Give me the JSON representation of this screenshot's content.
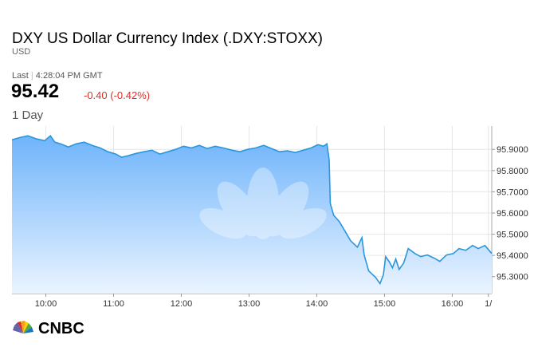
{
  "header": {
    "last_label": "Last",
    "last_time": "4:28:04 PM GMT",
    "last_value": "95.42",
    "change": "-0.40 (-0.42%)",
    "range": "1 Day",
    "brand": "CNBC"
  },
  "chart_data": {
    "type": "area",
    "title": "DXY US Dollar Currency Index (.DXY:STOXX)",
    "subtitle": "USD",
    "x": [
      "09:30",
      "09:37",
      "09:44",
      "09:52",
      "09:59",
      "10:04",
      "10:08",
      "10:13",
      "10:20",
      "10:27",
      "10:34",
      "10:41",
      "10:48",
      "10:55",
      "11:02",
      "11:07",
      "11:13",
      "11:20",
      "11:27",
      "11:34",
      "11:41",
      "11:48",
      "11:55",
      "12:02",
      "12:09",
      "12:16",
      "12:23",
      "12:30",
      "12:37",
      "12:45",
      "12:52",
      "12:59",
      "13:06",
      "13:13",
      "13:20",
      "13:27",
      "13:34",
      "13:41",
      "13:48",
      "13:55",
      "14:01",
      "14:06",
      "14:09",
      "14:11",
      "14:12",
      "14:15",
      "14:20",
      "14:25",
      "14:30",
      "14:36",
      "14:40",
      "14:42",
      "14:46",
      "14:52",
      "14:56",
      "14:59",
      "15:01",
      "15:04",
      "15:07",
      "15:10",
      "15:13",
      "15:17",
      "15:21",
      "15:27",
      "15:32",
      "15:38",
      "15:44",
      "15:49",
      "15:55",
      "16:01",
      "16:06",
      "16:12",
      "16:18",
      "16:23",
      "16:29",
      "16:35"
    ],
    "series": [
      {
        "name": "DXY",
        "color": "#2a96dc",
        "values": [
          95.945,
          95.956,
          95.964,
          95.949,
          95.941,
          95.964,
          95.934,
          95.926,
          95.911,
          95.926,
          95.934,
          95.919,
          95.907,
          95.889,
          95.878,
          95.863,
          95.87,
          95.881,
          95.889,
          95.896,
          95.878,
          95.889,
          95.9,
          95.915,
          95.907,
          95.919,
          95.904,
          95.915,
          95.907,
          95.896,
          95.889,
          95.9,
          95.907,
          95.919,
          95.904,
          95.889,
          95.893,
          95.885,
          95.896,
          95.907,
          95.922,
          95.915,
          95.926,
          95.851,
          95.645,
          95.589,
          95.559,
          95.514,
          95.469,
          95.439,
          95.484,
          95.402,
          95.327,
          95.297,
          95.267,
          95.308,
          95.394,
          95.372,
          95.342,
          95.383,
          95.334,
          95.364,
          95.432,
          95.409,
          95.394,
          95.402,
          95.387,
          95.372,
          95.402,
          95.409,
          95.432,
          95.424,
          95.447,
          95.432,
          95.447,
          95.409
        ]
      }
    ],
    "xlim": [
      "09:30",
      "16:35"
    ],
    "xticks": [
      "10:00",
      "11:00",
      "12:00",
      "13:00",
      "14:00",
      "15:00",
      "16:00",
      {
        "value": "16:32",
        "label": "1/"
      }
    ],
    "ylim": [
      95.22,
      96.01
    ],
    "yticks": [
      {
        "value": 95.9,
        "label": "95.9000"
      },
      {
        "value": 95.8,
        "label": "95.8000"
      },
      {
        "value": 95.7,
        "label": "95.7000"
      },
      {
        "value": 95.6,
        "label": "95.6000"
      },
      {
        "value": 95.5,
        "label": "95.5000"
      },
      {
        "value": 95.4,
        "label": "95.4000"
      },
      {
        "value": 95.3,
        "label": "95.3000"
      }
    ],
    "grid": true
  }
}
